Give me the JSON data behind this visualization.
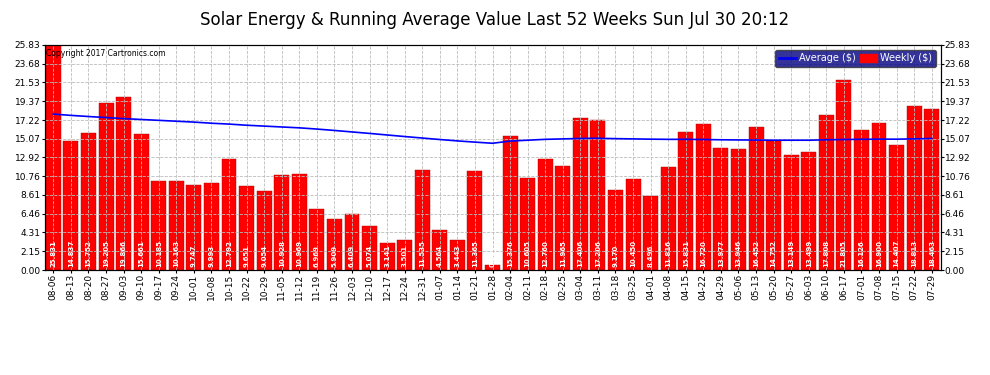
{
  "title": "Solar Energy & Running Average Value Last 52 Weeks Sun Jul 30 20:12",
  "copyright": "Copyright 2017 Cartronics.com",
  "bar_color": "#FF0000",
  "bar_edge_color": "#AA0000",
  "avg_line_color": "#0000FF",
  "background_color": "#FFFFFF",
  "grid_color": "#BBBBBB",
  "categories": [
    "08-06",
    "08-13",
    "08-20",
    "08-27",
    "09-03",
    "09-10",
    "09-17",
    "09-24",
    "10-01",
    "10-08",
    "10-15",
    "10-22",
    "10-29",
    "11-05",
    "11-12",
    "11-19",
    "11-26",
    "12-03",
    "12-10",
    "12-17",
    "12-24",
    "12-31",
    "01-07",
    "01-14",
    "01-21",
    "01-28",
    "02-04",
    "02-11",
    "02-18",
    "02-25",
    "03-04",
    "03-11",
    "03-18",
    "03-25",
    "04-01",
    "04-08",
    "04-15",
    "04-22",
    "04-29",
    "05-06",
    "05-13",
    "05-20",
    "05-27",
    "06-03",
    "06-10",
    "06-17",
    "07-01",
    "07-08",
    "07-15",
    "07-22",
    "07-29"
  ],
  "values": [
    25.831,
    14.837,
    15.752,
    19.205,
    19.866,
    15.661,
    10.185,
    10.163,
    9.747,
    9.993,
    12.792,
    9.651,
    9.054,
    10.928,
    10.969,
    6.969,
    5.909,
    6.409,
    5.074,
    3.141,
    3.501,
    11.535,
    4.564,
    3.443,
    11.365,
    0.554,
    15.376,
    10.605,
    12.76,
    11.965,
    17.406,
    17.206,
    9.17,
    10.45,
    8.496,
    11.816,
    15.831,
    16.72,
    13.977,
    13.946,
    16.452,
    14.752,
    13.149,
    13.499,
    17.808,
    21.805,
    16.126,
    16.9,
    14.407,
    18.813,
    18.463
  ],
  "running_avg": [
    17.9,
    17.75,
    17.62,
    17.5,
    17.38,
    17.28,
    17.18,
    17.08,
    16.98,
    16.85,
    16.75,
    16.62,
    16.52,
    16.42,
    16.32,
    16.18,
    16.02,
    15.85,
    15.68,
    15.5,
    15.32,
    15.15,
    14.98,
    14.82,
    14.68,
    14.55,
    14.8,
    14.9,
    15.0,
    15.05,
    15.1,
    15.12,
    15.08,
    15.05,
    15.02,
    15.0,
    15.0,
    14.98,
    14.95,
    14.93,
    14.92,
    14.9,
    14.9,
    14.9,
    14.95,
    14.98,
    15.0,
    15.02,
    15.02,
    15.05,
    15.1
  ],
  "yticks": [
    0.0,
    2.15,
    4.31,
    6.46,
    8.61,
    10.76,
    12.92,
    15.07,
    17.22,
    19.37,
    21.53,
    23.68,
    25.83
  ],
  "ymax": 25.83,
  "legend_avg_label": "Average ($)",
  "legend_weekly_label": "Weekly ($)",
  "legend_avg_color": "#0000EE",
  "legend_weekly_color": "#FF0000",
  "legend_bg_color": "#000080",
  "title_fontsize": 12,
  "tick_fontsize": 6.5,
  "bar_label_fontsize": 5.0
}
